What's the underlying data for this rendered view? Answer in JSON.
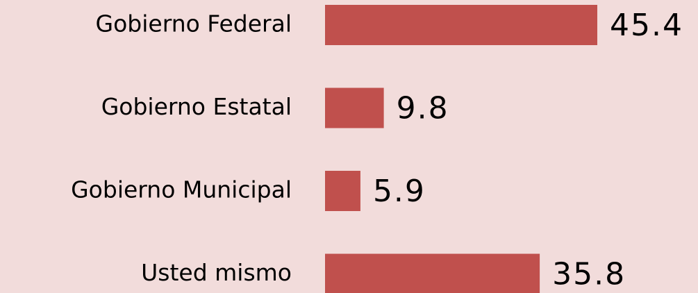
{
  "chart_data": {
    "type": "barh",
    "categories": [
      "Gobierno Federal",
      "Gobierno Estatal",
      "Gobierno Municipal",
      "Usted mismo"
    ],
    "values": [
      45.4,
      9.8,
      5.9,
      35.8
    ],
    "color": "#c0504d"
  }
}
